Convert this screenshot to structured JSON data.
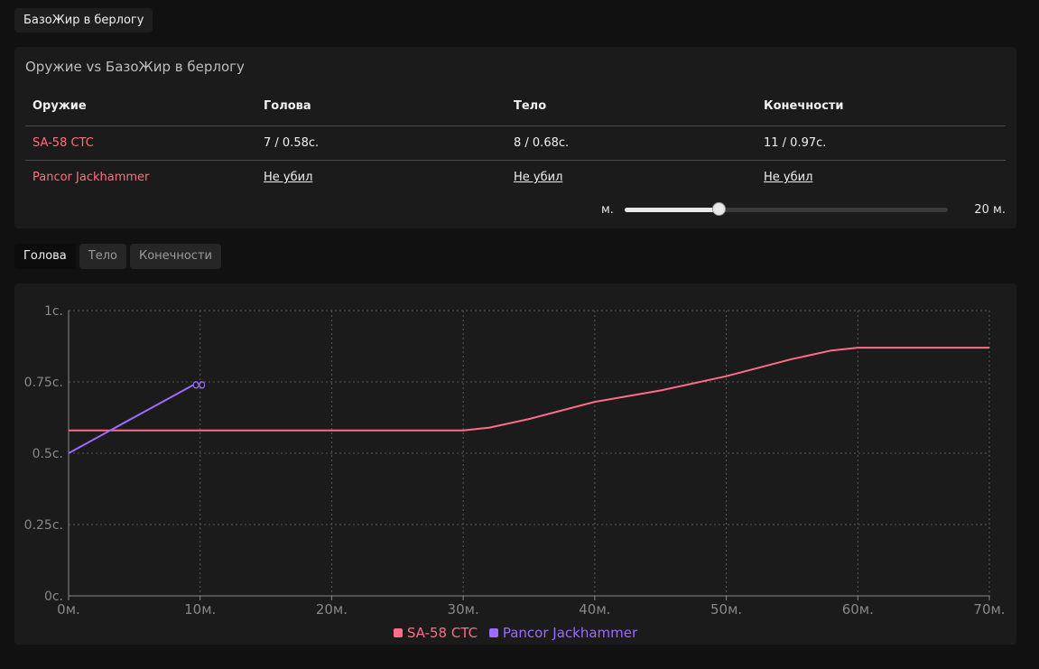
{
  "page": {
    "title": "БазоЖир в берлогу"
  },
  "panel": {
    "title": "Оружие vs БазоЖир в берлогу",
    "headers": [
      "Оружие",
      "Голова",
      "Тело",
      "Конечности"
    ],
    "rows": [
      {
        "weapon": "SA-58 CTC",
        "head": "7 / 0.58с.",
        "body": "8 / 0.68с.",
        "limbs": "11 / 0.97с."
      },
      {
        "weapon": "Pancor Jackhammer",
        "head": "Не убил",
        "body": "Не убил",
        "limbs": "Не убил"
      }
    ],
    "range": {
      "unit_label": "м.",
      "value_label": "20 м.",
      "fraction": 0.29
    }
  },
  "tabs": [
    {
      "label": "Голова",
      "active": true
    },
    {
      "label": "Тело",
      "active": false
    },
    {
      "label": "Конечности",
      "active": false
    }
  ],
  "colors": {
    "sa58": "#ff6b88",
    "jackhammer": "#9b6bff",
    "grid": "#5a5a5a",
    "axis": "#888888"
  },
  "chart_data": {
    "type": "line",
    "xlabel": "",
    "ylabel": "",
    "xlim": [
      0,
      70
    ],
    "ylim": [
      0,
      1
    ],
    "x_ticks": [
      0,
      10,
      20,
      30,
      40,
      50,
      60,
      70
    ],
    "x_tick_labels": [
      "0м.",
      "10м.",
      "20м.",
      "30м.",
      "40м.",
      "50м.",
      "60м.",
      "70м."
    ],
    "y_ticks": [
      0,
      0.25,
      0.5,
      0.75,
      1
    ],
    "y_tick_labels": [
      "0с.",
      "0.25с.",
      "0.5с.",
      "0.75с.",
      "1с."
    ],
    "grid": true,
    "legend_position": "bottom",
    "series": [
      {
        "name": "SA-58 CTC",
        "color": "#ff6b88",
        "x": [
          0,
          10,
          20,
          30,
          32,
          35,
          40,
          45,
          50,
          55,
          58,
          60,
          65,
          70
        ],
        "y": [
          0.58,
          0.58,
          0.58,
          0.58,
          0.59,
          0.62,
          0.68,
          0.72,
          0.77,
          0.83,
          0.86,
          0.87,
          0.87,
          0.87
        ]
      },
      {
        "name": "Pancor Jackhammer",
        "color": "#9b6bff",
        "x": [
          0,
          9.5
        ],
        "y": [
          0.5,
          0.74
        ],
        "end_marker": "∞"
      }
    ]
  }
}
